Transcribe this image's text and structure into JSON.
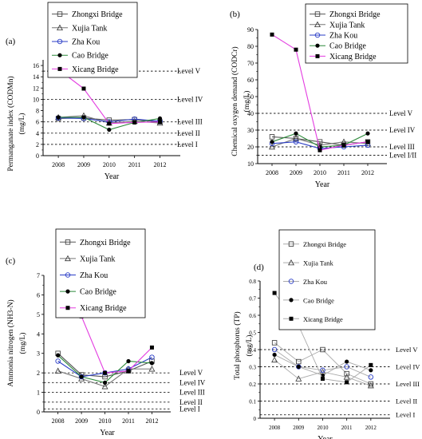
{
  "legend_labels": [
    "Zhongxi Bridge",
    "Xujia Tank",
    "Zha Kou",
    "Cao Bridge",
    "Xicang Bridge"
  ],
  "colors": {
    "Zhongxi Bridge": "#555555",
    "Xujia Tank": "#777777",
    "Zha Kou": "#2b3ec7",
    "Cao Bridge": "#2c8a3a",
    "Xicang Bridge": "#e33ce0",
    "panel_d_lines": "#aaaaaa"
  },
  "chart_data": [
    {
      "id": "a",
      "type": "line",
      "panel_label": "(a)",
      "xlabel": "Year",
      "ylabel": "Permanganate index (CODMn)",
      "ylabel_unit": "(mg/L)",
      "x": [
        2008,
        2009,
        2010,
        2011,
        2012
      ],
      "ylim": [
        0,
        17
      ],
      "yticks": [
        0,
        2,
        4,
        6,
        8,
        10,
        12,
        14,
        16
      ],
      "xticks": [
        2008,
        2009,
        2010,
        2011,
        2012
      ],
      "series": [
        {
          "name": "Zhongxi Bridge",
          "values": [
            6.6,
            6.7,
            6.3,
            6.4,
            6.0
          ]
        },
        {
          "name": "Xujia Tank",
          "values": [
            6.8,
            7.1,
            5.8,
            6.1,
            5.8
          ]
        },
        {
          "name": "Zha Kou",
          "values": [
            6.7,
            6.6,
            6.0,
            6.5,
            6.1
          ]
        },
        {
          "name": "Cao Bridge",
          "values": [
            6.8,
            6.8,
            4.6,
            5.9,
            6.6
          ]
        },
        {
          "name": "Xicang Bridge",
          "values": [
            15.3,
            11.9,
            5.7,
            5.9,
            6.0
          ]
        }
      ],
      "levels": [
        {
          "label": "Level V",
          "value": 15
        },
        {
          "label": "Level IV",
          "value": 10
        },
        {
          "label": "Level III",
          "value": 6
        },
        {
          "label": "Level II",
          "value": 4
        },
        {
          "label": "Level I",
          "value": 2
        }
      ],
      "grid": false,
      "legend": "top-left"
    },
    {
      "id": "b",
      "type": "line",
      "panel_label": "(b)",
      "xlabel": "Year",
      "ylabel": "Chemical oxygen demand (CODCr)",
      "ylabel_unit": "(mg/L)",
      "x": [
        2008,
        2009,
        2010,
        2011,
        2012
      ],
      "ylim": [
        10,
        90
      ],
      "yticks": [
        10,
        20,
        30,
        40,
        50,
        60,
        70,
        80,
        90
      ],
      "xticks": [
        2008,
        2009,
        2010,
        2011,
        2012
      ],
      "series": [
        {
          "name": "Zhongxi Bridge",
          "values": [
            26,
            25,
            23,
            21,
            23
          ]
        },
        {
          "name": "Xujia Tank",
          "values": [
            20,
            25,
            21,
            23,
            22
          ]
        },
        {
          "name": "Zha Kou",
          "values": [
            22,
            23,
            19,
            20,
            21
          ]
        },
        {
          "name": "Cao Bridge",
          "values": [
            23,
            28,
            20,
            21,
            28
          ]
        },
        {
          "name": "Xicang Bridge",
          "values": [
            87,
            78,
            18,
            21,
            23
          ]
        }
      ],
      "levels": [
        {
          "label": "Level V",
          "value": 40
        },
        {
          "label": "Level IV",
          "value": 30
        },
        {
          "label": "Level III",
          "value": 20
        },
        {
          "label": "Level I/II",
          "value": 15
        }
      ],
      "grid": false,
      "legend": "top-right"
    },
    {
      "id": "c",
      "type": "line",
      "panel_label": "(c)",
      "xlabel": "Year",
      "ylabel": "Ammonia nitrogen (NH3-N)",
      "ylabel_unit": "(mg/L)",
      "x": [
        2008,
        2009,
        2010,
        2011,
        2012
      ],
      "ylim": [
        0,
        7
      ],
      "yticks": [
        0,
        1,
        2,
        3,
        4,
        5,
        6,
        7
      ],
      "xticks": [
        2008,
        2009,
        2010,
        2011,
        2012
      ],
      "series": [
        {
          "name": "Zhongxi Bridge",
          "values": [
            3.0,
            1.9,
            1.8,
            2.1,
            2.6
          ]
        },
        {
          "name": "Xujia Tank",
          "values": [
            2.1,
            1.7,
            1.3,
            2.2,
            2.2
          ]
        },
        {
          "name": "Zha Kou",
          "values": [
            2.6,
            1.8,
            2.0,
            2.2,
            2.8
          ]
        },
        {
          "name": "Cao Bridge",
          "values": [
            2.9,
            1.8,
            1.5,
            2.6,
            2.5
          ]
        },
        {
          "name": "Xicang Bridge",
          "values": [
            6.5,
            4.9,
            2.0,
            2.1,
            3.3
          ]
        }
      ],
      "levels": [
        {
          "label": "Level V",
          "value": 2.0
        },
        {
          "label": "Level IV",
          "value": 1.5
        },
        {
          "label": "Level III",
          "value": 1.0
        },
        {
          "label": "Level II",
          "value": 0.5
        },
        {
          "label": "Level I",
          "value": 0.15
        }
      ],
      "grid": false,
      "legend": "top"
    },
    {
      "id": "d",
      "type": "line",
      "panel_label": "(d)",
      "xlabel": "Year",
      "ylabel": "Total phosphorus (TP)",
      "ylabel_unit": "(mg/L)",
      "x": [
        2008,
        2009,
        2010,
        2011,
        2012
      ],
      "ylim": [
        0,
        0.8
      ],
      "yticks": [
        0.0,
        0.1,
        0.2,
        0.3,
        0.4,
        0.5,
        0.6,
        0.7,
        0.8
      ],
      "xticks": [
        2008,
        2009,
        2010,
        2011,
        2012
      ],
      "series": [
        {
          "name": "Zhongxi Bridge",
          "values": [
            0.44,
            0.33,
            0.4,
            0.26,
            0.2
          ]
        },
        {
          "name": "Xujia Tank",
          "values": [
            0.34,
            0.23,
            0.27,
            0.24,
            0.19
          ]
        },
        {
          "name": "Zha Kou",
          "values": [
            0.4,
            0.3,
            0.28,
            0.3,
            0.24
          ]
        },
        {
          "name": "Cao Bridge",
          "values": [
            0.37,
            0.3,
            0.25,
            0.33,
            0.28
          ]
        },
        {
          "name": "Xicang Bridge",
          "values": [
            0.73,
            0.54,
            0.23,
            0.21,
            0.31
          ]
        }
      ],
      "levels": [
        {
          "label": "Level V",
          "value": 0.4
        },
        {
          "label": "Level IV",
          "value": 0.3
        },
        {
          "label": "Level III",
          "value": 0.2
        },
        {
          "label": "Level II",
          "value": 0.1
        },
        {
          "label": "Level I",
          "value": 0.02
        }
      ],
      "grid": false,
      "legend": "top"
    }
  ]
}
